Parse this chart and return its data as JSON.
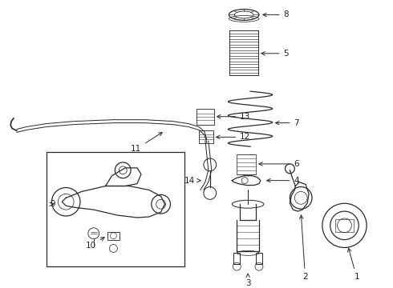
{
  "background_color": "#ffffff",
  "line_color": "#2a2a2a",
  "label_color": "#222222",
  "fig_width": 4.9,
  "fig_height": 3.6,
  "dpi": 100
}
